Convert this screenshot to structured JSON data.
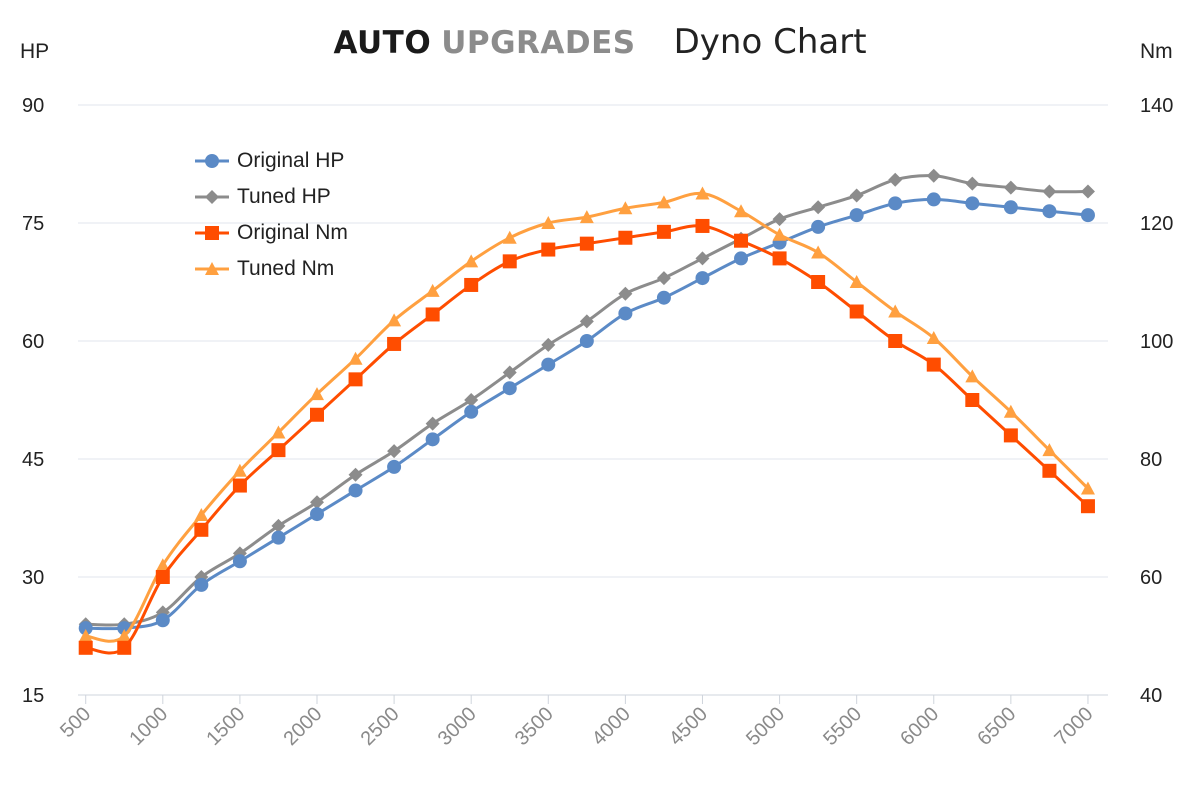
{
  "title": {
    "brand_part1": "AUTO",
    "brand_part2": "UPGRADES",
    "subtitle": "Dyno Chart"
  },
  "chart_data": {
    "type": "line",
    "title": "AUTO UPGRADES Dyno Chart",
    "xlabel": "",
    "y_left_label": "HP",
    "y_right_label": "Nm",
    "x_ticks": [
      "500",
      "1000",
      "1500",
      "2000",
      "2500",
      "3000",
      "3500",
      "4000",
      "4500",
      "5000",
      "5500",
      "6000",
      "6500",
      "7000"
    ],
    "x": [
      500,
      750,
      1000,
      1250,
      1500,
      1750,
      2000,
      2250,
      2500,
      2750,
      3000,
      3250,
      3500,
      3750,
      4000,
      4250,
      4500,
      4750,
      5000,
      5250,
      5500,
      5750,
      6000,
      6250,
      6500,
      6750,
      7000
    ],
    "x_range": [
      450,
      7130
    ],
    "y_left": {
      "range": [
        15,
        90
      ],
      "ticks": [
        15,
        30,
        45,
        60,
        75,
        90
      ]
    },
    "y_right": {
      "range": [
        40,
        140
      ],
      "ticks": [
        40,
        60,
        80,
        100,
        120,
        140
      ]
    },
    "grid": true,
    "legend_position": "top-left",
    "series": [
      {
        "name": "Original HP",
        "axis": "left",
        "color": "#5b8ac6",
        "marker": "circle",
        "values": [
          23.5,
          23.5,
          24.5,
          29,
          32,
          35,
          38,
          41,
          44,
          47.5,
          51,
          54,
          57,
          60,
          63.5,
          65.5,
          68,
          70.5,
          72.5,
          74.5,
          76,
          77.5,
          78,
          77.5,
          77,
          76.5,
          76
        ]
      },
      {
        "name": "Tuned HP",
        "axis": "left",
        "color": "#8c8c8c",
        "marker": "diamond",
        "values": [
          24,
          24,
          25.5,
          30,
          33,
          36.5,
          39.5,
          43,
          46,
          49.5,
          52.5,
          56,
          59.5,
          62.5,
          66,
          68,
          70.5,
          73,
          75.5,
          77,
          78.5,
          80.5,
          81,
          80,
          79.5,
          79,
          79
        ]
      },
      {
        "name": "Original Nm",
        "axis": "right",
        "color": "#ff4d00",
        "marker": "square",
        "values": [
          48,
          48,
          60,
          68,
          75.5,
          81.5,
          87.5,
          93.5,
          99.5,
          104.5,
          109.5,
          113.5,
          115.5,
          116.5,
          117.5,
          118.5,
          119.5,
          117,
          114,
          110,
          105,
          100,
          96,
          90,
          84,
          78,
          72
        ]
      },
      {
        "name": "Tuned Nm",
        "axis": "right",
        "color": "#ffa040",
        "marker": "triangle",
        "values": [
          50,
          50,
          62,
          70.5,
          78,
          84.5,
          91,
          97,
          103.5,
          108.5,
          113.5,
          117.5,
          120,
          121,
          122.5,
          123.5,
          125,
          122,
          118,
          115,
          110,
          105,
          100.5,
          94,
          88,
          81.5,
          75
        ]
      }
    ]
  }
}
